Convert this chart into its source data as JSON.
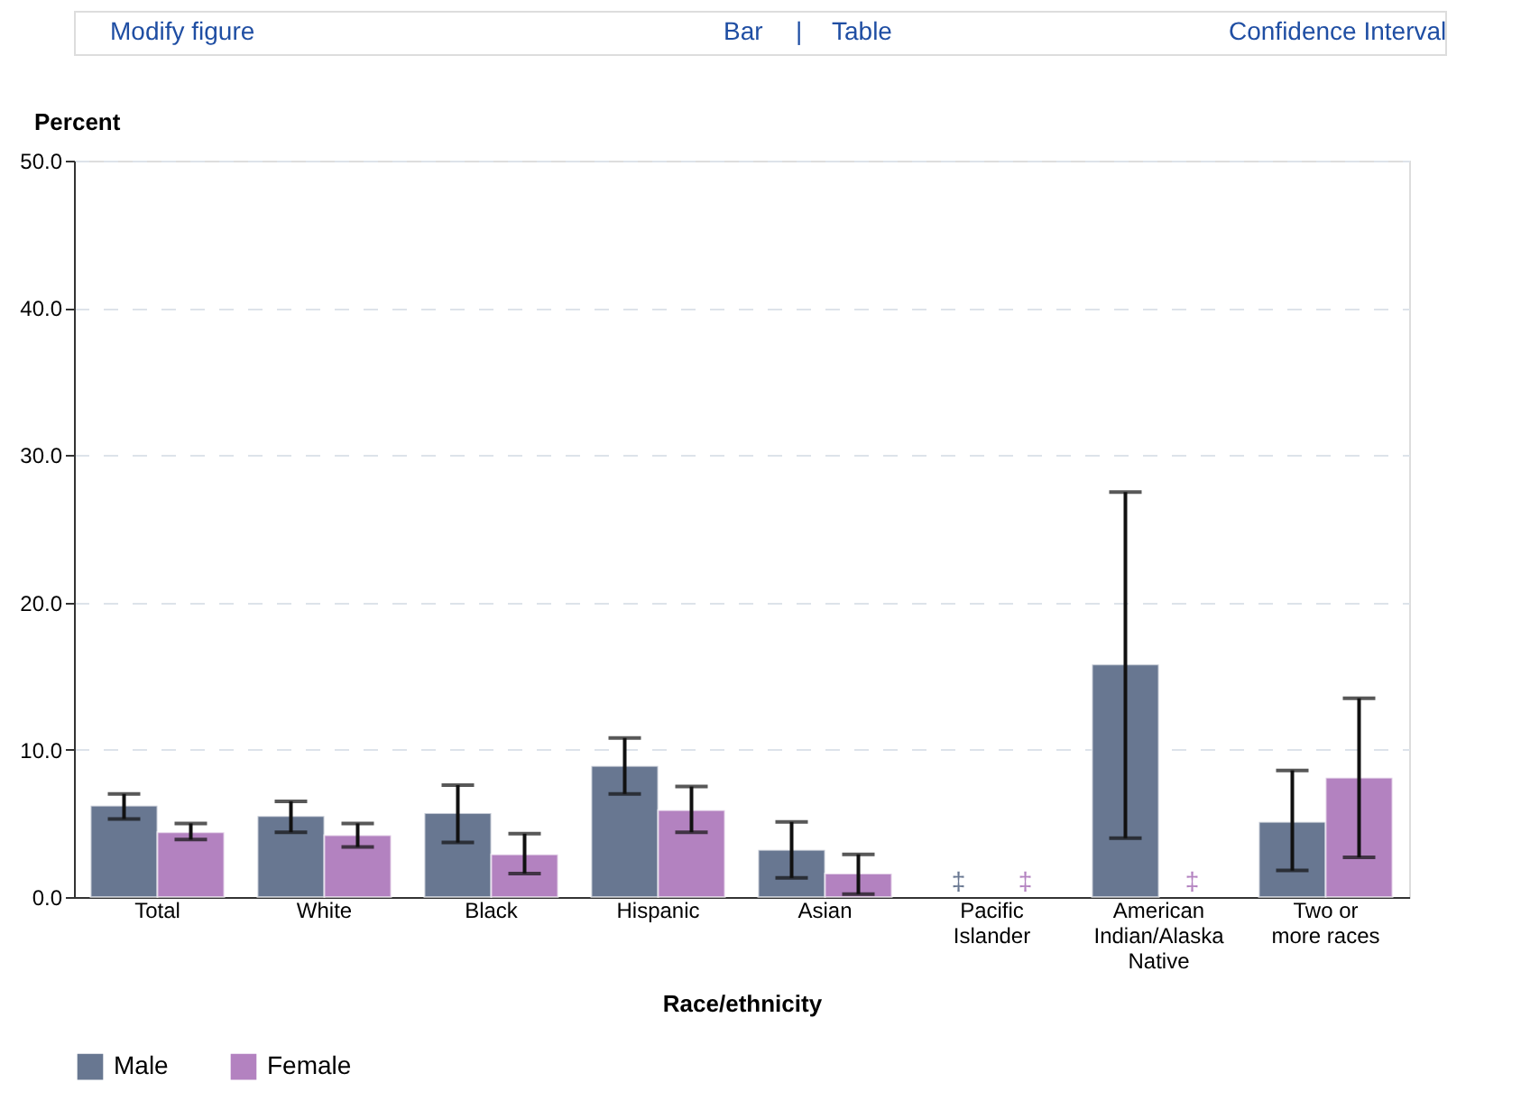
{
  "chart_data": {
    "type": "bar",
    "ylabel": "Percent",
    "xlabel": "Race/ethnicity",
    "annotations": [
      "Modify figure",
      "Bar",
      "|",
      "Table",
      "Confidence Interval"
    ],
    "categories": [
      "Total",
      "White",
      "Black",
      "Hispanic",
      "Asian",
      "Pacific\nIslander",
      "American\nIndian/Alaska\nNative",
      "Two or\nmore races"
    ],
    "series": [
      {
        "name": "Male",
        "color": "#687791",
        "values": [
          6.2,
          5.5,
          5.7,
          8.9,
          3.2,
          null,
          15.8,
          5.1
        ],
        "errors": [
          [
            5.3,
            7.0
          ],
          [
            4.4,
            6.5
          ],
          [
            3.7,
            7.6
          ],
          [
            7.0,
            10.8
          ],
          [
            1.3,
            5.1
          ],
          null,
          [
            4.0,
            27.5
          ],
          [
            1.8,
            8.6
          ]
        ],
        "value_labels": [
          null,
          null,
          null,
          null,
          null,
          "‡",
          null,
          null
        ]
      },
      {
        "name": "Female",
        "color": "#b382c0",
        "values": [
          4.4,
          4.2,
          2.9,
          5.9,
          1.6,
          null,
          null,
          8.1
        ],
        "errors": [
          [
            3.9,
            5.0
          ],
          [
            3.4,
            5.0
          ],
          [
            1.6,
            4.3
          ],
          [
            4.4,
            7.5
          ],
          [
            0.2,
            2.9
          ],
          null,
          null,
          [
            2.7,
            13.5
          ]
        ],
        "value_labels": [
          null,
          null,
          null,
          null,
          null,
          "‡",
          "‡",
          null
        ]
      }
    ],
    "ylim": [
      0,
      50
    ],
    "yticks": [
      {
        "value": 0,
        "label": "0.0"
      },
      {
        "value": 10,
        "label": "10.0"
      },
      {
        "value": 20,
        "label": "20.0"
      },
      {
        "value": 30,
        "label": "30.0"
      },
      {
        "value": 40,
        "label": "40.0"
      },
      {
        "value": 50,
        "label": "50.0"
      }
    ],
    "grid": "y",
    "legend": "bottom"
  }
}
